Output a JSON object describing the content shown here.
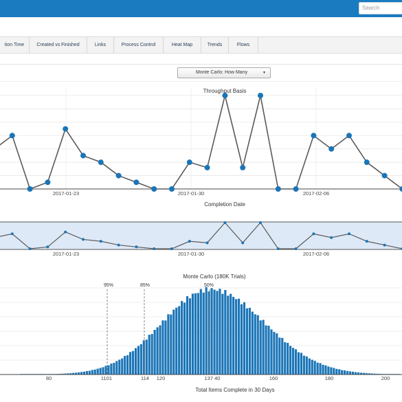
{
  "search": {
    "placeholder": "Search"
  },
  "tabs": [
    {
      "label": "tion Time"
    },
    {
      "label": "Created vs Finished"
    },
    {
      "label": "Links"
    },
    {
      "label": "Process Control"
    },
    {
      "label": "Heat Map"
    },
    {
      "label": "Trends"
    },
    {
      "label": "Flows"
    }
  ],
  "dropdown": {
    "label": "Monte Carlo: How Many",
    "arrow": "▼"
  },
  "colors": {
    "accent": "#1a7bc0",
    "series_line": "#5a5a5a",
    "marker": "#1b75b7",
    "bar": "#1b75b7",
    "brush": "#dde9f6"
  },
  "chart_data": [
    {
      "type": "line",
      "title": "Throughput Basis",
      "xlabel": "Completion Date",
      "ylabel": "",
      "x_tick_labels": [
        "2017-01-23",
        "2017-01-30",
        "2017-02-06"
      ],
      "values": [
        3,
        4,
        0,
        0.5,
        4.5,
        2.5,
        2,
        1,
        0.5,
        0,
        0,
        2,
        1.6,
        7,
        1.6,
        7,
        0,
        0,
        4,
        3,
        4,
        2,
        1,
        0
      ],
      "ylim": [
        0,
        7
      ],
      "grid": true
    },
    {
      "type": "line",
      "title": "",
      "x_tick_labels": [
        "2017-01-23",
        "2017-01-30",
        "2017-02-06"
      ],
      "values": [
        3,
        4,
        0,
        0.5,
        4.5,
        2.5,
        2,
        1,
        0.5,
        0,
        0,
        2,
        1.6,
        7,
        1.6,
        7,
        0,
        0,
        4,
        3,
        4,
        2,
        1,
        0
      ],
      "ylim": [
        0,
        7
      ]
    },
    {
      "type": "bar",
      "title": "Monte Carlo (180K Trials)",
      "xlabel": "Total Items Complete in 30 Days",
      "x_tick_labels": [
        "80",
        "1101",
        "114",
        "120",
        "137 40",
        "160",
        "180",
        "200"
      ],
      "percentile_labels": [
        "95%",
        "85%",
        "50%"
      ],
      "xlim": [
        70,
        203
      ],
      "ylim": [
        0,
        1
      ],
      "bin_start": 70,
      "bin_end": 203
    }
  ]
}
